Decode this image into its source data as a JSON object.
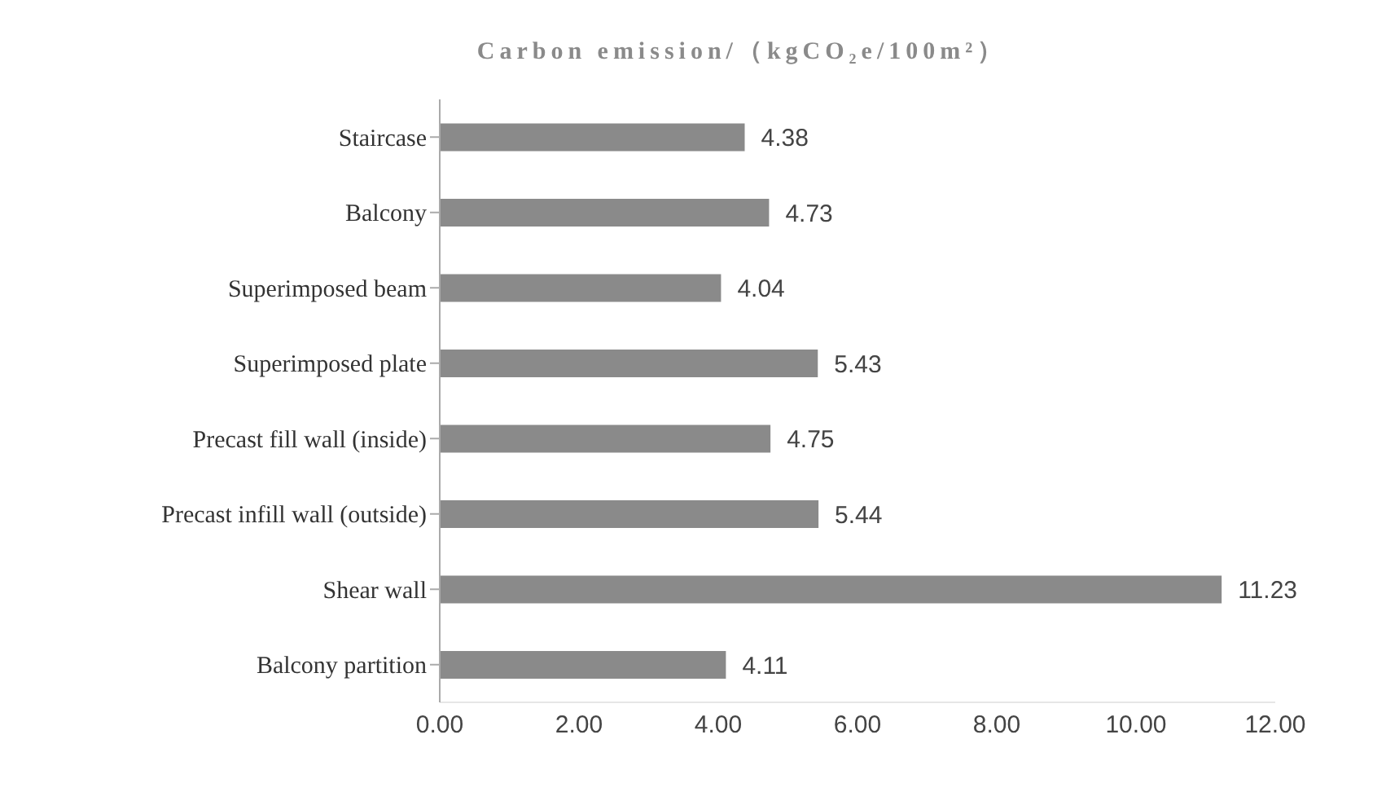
{
  "chart_data": {
    "type": "bar",
    "orientation": "horizontal",
    "title": "Carbon emission/（kgCO₂e/100m²）",
    "categories": [
      "Staircase",
      "Balcony",
      "Superimposed beam",
      "Superimposed plate",
      "Precast fill wall (inside)",
      "Precast infill wall (outside)",
      "Shear wall",
      "Balcony partition"
    ],
    "values": [
      4.38,
      4.73,
      4.04,
      5.43,
      4.75,
      5.44,
      11.23,
      4.11
    ],
    "color": "#8a8a8a",
    "xlim": [
      0,
      12
    ],
    "xticks": [
      {
        "value": 0,
        "label": "0.00"
      },
      {
        "value": 2,
        "label": "2.00"
      },
      {
        "value": 4,
        "label": "4.00"
      },
      {
        "value": 6,
        "label": "6.00"
      },
      {
        "value": 8,
        "label": "8.00"
      },
      {
        "value": 10,
        "label": "10.00"
      },
      {
        "value": 12,
        "label": "12.00"
      }
    ],
    "data_labels": true,
    "grid": false
  }
}
